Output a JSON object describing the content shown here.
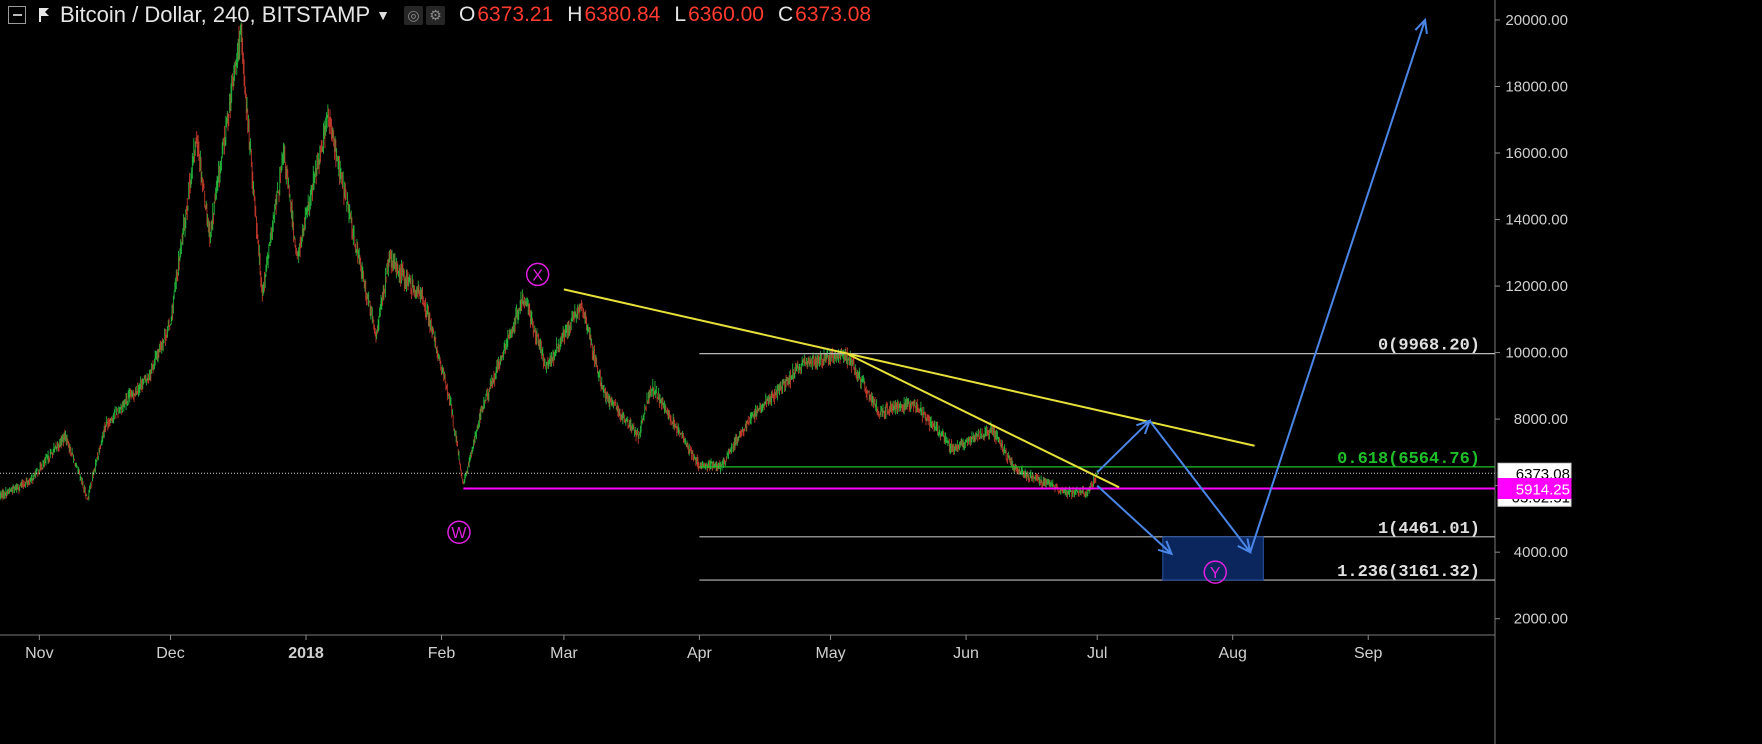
{
  "header": {
    "symbol_title": "Bitcoin / Dollar, 240, BITSTAMP",
    "ohlc": [
      {
        "key": "O",
        "value": "6373.21"
      },
      {
        "key": "H",
        "value": "6380.84"
      },
      {
        "key": "L",
        "value": "6360.00"
      },
      {
        "key": "C",
        "value": "6373.08"
      }
    ]
  },
  "colors": {
    "background": "#000000",
    "candle_up": "#22b33a",
    "candle_down": "#c0392b",
    "trendline": "#e6e03a",
    "support_line": "#ff00ff",
    "fib_0618": "#1fbf2a",
    "fib_other": "#b8b8b8",
    "projection": "#4a86e8",
    "target_box": "#0b2a66",
    "wave_label": "#e020e0",
    "price_tag_current": "#ffffff",
    "price_tag_support": "#ff00ff"
  },
  "chart_data": {
    "type": "candlestick",
    "title": "Bitcoin / Dollar, 240, BITSTAMP",
    "ylim": [
      1600,
      20600
    ],
    "xlim": [
      "2017-10-23",
      "2018-09-30"
    ],
    "y_ticks": [
      "2000.00",
      "4000.00",
      "6000.00",
      "8000.00",
      "10000.00",
      "12000.00",
      "14000.00",
      "16000.00",
      "18000.00",
      "20000.00"
    ],
    "x_ticks": [
      {
        "label": "Nov",
        "date": "2017-11-01"
      },
      {
        "label": "Dec",
        "date": "2017-12-01"
      },
      {
        "label": "2018",
        "date": "2018-01-01",
        "bold": true
      },
      {
        "label": "Feb",
        "date": "2018-02-01"
      },
      {
        "label": "Mar",
        "date": "2018-03-01"
      },
      {
        "label": "Apr",
        "date": "2018-04-01"
      },
      {
        "label": "May",
        "date": "2018-05-01"
      },
      {
        "label": "Jun",
        "date": "2018-06-01"
      },
      {
        "label": "Jul",
        "date": "2018-07-01"
      },
      {
        "label": "Aug",
        "date": "2018-08-01"
      },
      {
        "label": "Sep",
        "date": "2018-09-01"
      }
    ],
    "price_path": [
      [
        "2017-10-23",
        5700
      ],
      [
        "2017-10-30",
        6150
      ],
      [
        "2017-11-07",
        7500
      ],
      [
        "2017-11-12",
        5600
      ],
      [
        "2017-11-16",
        7800
      ],
      [
        "2017-11-26",
        9300
      ],
      [
        "2017-12-01",
        10900
      ],
      [
        "2017-12-07",
        16500
      ],
      [
        "2017-12-10",
        13500
      ],
      [
        "2017-12-17",
        19600
      ],
      [
        "2017-12-22",
        11800
      ],
      [
        "2017-12-27",
        16000
      ],
      [
        "2017-12-30",
        12800
      ],
      [
        "2018-01-06",
        17100
      ],
      [
        "2018-01-12",
        13500
      ],
      [
        "2018-01-17",
        10500
      ],
      [
        "2018-01-20",
        12800
      ],
      [
        "2018-01-28",
        11600
      ],
      [
        "2018-02-03",
        8500
      ],
      [
        "2018-02-06",
        6000
      ],
      [
        "2018-02-10",
        8200
      ],
      [
        "2018-02-20",
        11700
      ],
      [
        "2018-02-25",
        9500
      ],
      [
        "2018-03-05",
        11500
      ],
      [
        "2018-03-10",
        8800
      ],
      [
        "2018-03-18",
        7500
      ],
      [
        "2018-03-21",
        9000
      ],
      [
        "2018-04-01",
        6600
      ],
      [
        "2018-04-06",
        6600
      ],
      [
        "2018-04-12",
        7900
      ],
      [
        "2018-04-25",
        9700
      ],
      [
        "2018-05-05",
        9900
      ],
      [
        "2018-05-12",
        8200
      ],
      [
        "2018-05-20",
        8500
      ],
      [
        "2018-05-29",
        7100
      ],
      [
        "2018-06-07",
        7700
      ],
      [
        "2018-06-12",
        6500
      ],
      [
        "2018-06-24",
        5800
      ],
      [
        "2018-06-29",
        5800
      ],
      [
        "2018-07-01",
        6373
      ]
    ],
    "levels": [
      {
        "label": "0(9968.20)",
        "price": 9968.2,
        "start": "2018-04-01",
        "kind": "fib"
      },
      {
        "label": "0.618(6564.76)",
        "price": 6564.76,
        "start": "2018-04-01",
        "kind": "fib_green"
      },
      {
        "label": "1(4461.01)",
        "price": 4461.01,
        "start": "2018-04-01",
        "kind": "fib"
      },
      {
        "label": "1.236(3161.32)",
        "price": 3161.32,
        "start": "2018-04-01",
        "kind": "fib"
      },
      {
        "label": "",
        "price": 5914.25,
        "start": "2018-02-06",
        "kind": "support"
      }
    ],
    "trendlines": [
      {
        "from": [
          "2018-03-01",
          11900
        ],
        "to": [
          "2018-08-06",
          7200
        ]
      },
      {
        "from": [
          "2018-05-05",
          9950
        ],
        "to": [
          "2018-07-06",
          5950
        ]
      }
    ],
    "projections": [
      {
        "from": [
          "2018-07-01",
          6400
        ],
        "to": [
          "2018-07-13",
          7950
        ]
      },
      {
        "from": [
          "2018-07-13",
          7950
        ],
        "to": [
          "2018-08-05",
          4000
        ]
      },
      {
        "from": [
          "2018-07-01",
          6000
        ],
        "to": [
          "2018-07-18",
          3950
        ]
      },
      {
        "from": [
          "2018-08-05",
          4000
        ],
        "to": [
          "2018-09-14",
          20000
        ]
      }
    ],
    "target_zone": {
      "x0": "2018-07-16",
      "x1": "2018-08-08",
      "y0": 3161.32,
      "y1": 4461.01
    },
    "wave_labels": [
      {
        "text": "X",
        "date": "2018-02-23",
        "price": 12350
      },
      {
        "text": "W",
        "date": "2018-02-05",
        "price": 4600
      },
      {
        "text": "Y",
        "date": "2018-07-28",
        "price": 3400
      }
    ],
    "price_tags": [
      {
        "text": "6373.08",
        "price": 6373.08,
        "kind": "current"
      },
      {
        "text": "03:02:51",
        "price": 5680,
        "kind": "timer"
      },
      {
        "text": "5914.25",
        "price": 5914.25,
        "kind": "support"
      }
    ]
  }
}
